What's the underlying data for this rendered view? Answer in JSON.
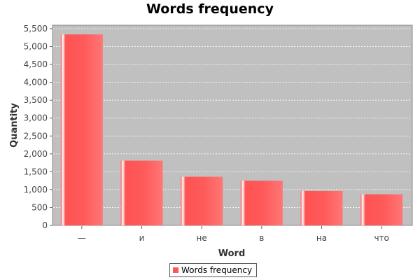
{
  "chart_data": {
    "type": "bar",
    "title": "Words frequency",
    "xlabel": "Word",
    "ylabel": "Quantity",
    "categories": [
      "—",
      "и",
      "не",
      "в",
      "на",
      "что"
    ],
    "series": [
      {
        "name": "Words frequency",
        "values": [
          5340,
          1810,
          1360,
          1250,
          960,
          870
        ]
      }
    ],
    "ylim": [
      0,
      5500
    ],
    "yticks": [
      0,
      500,
      1000,
      1500,
      2000,
      2500,
      3000,
      3500,
      4000,
      4500,
      5000,
      5500
    ],
    "ytick_labels": [
      "0",
      "500",
      "1,000",
      "1,500",
      "2,000",
      "2,500",
      "3,000",
      "3,500",
      "4,000",
      "4,500",
      "5,000",
      "5,500"
    ],
    "grid": true,
    "legend_position": "bottom-center",
    "colors": {
      "bar": "#ff5555",
      "bar_highlight": "#ffffff",
      "plot_background": "#c0c0c0",
      "gridline": "#ffffff"
    }
  }
}
